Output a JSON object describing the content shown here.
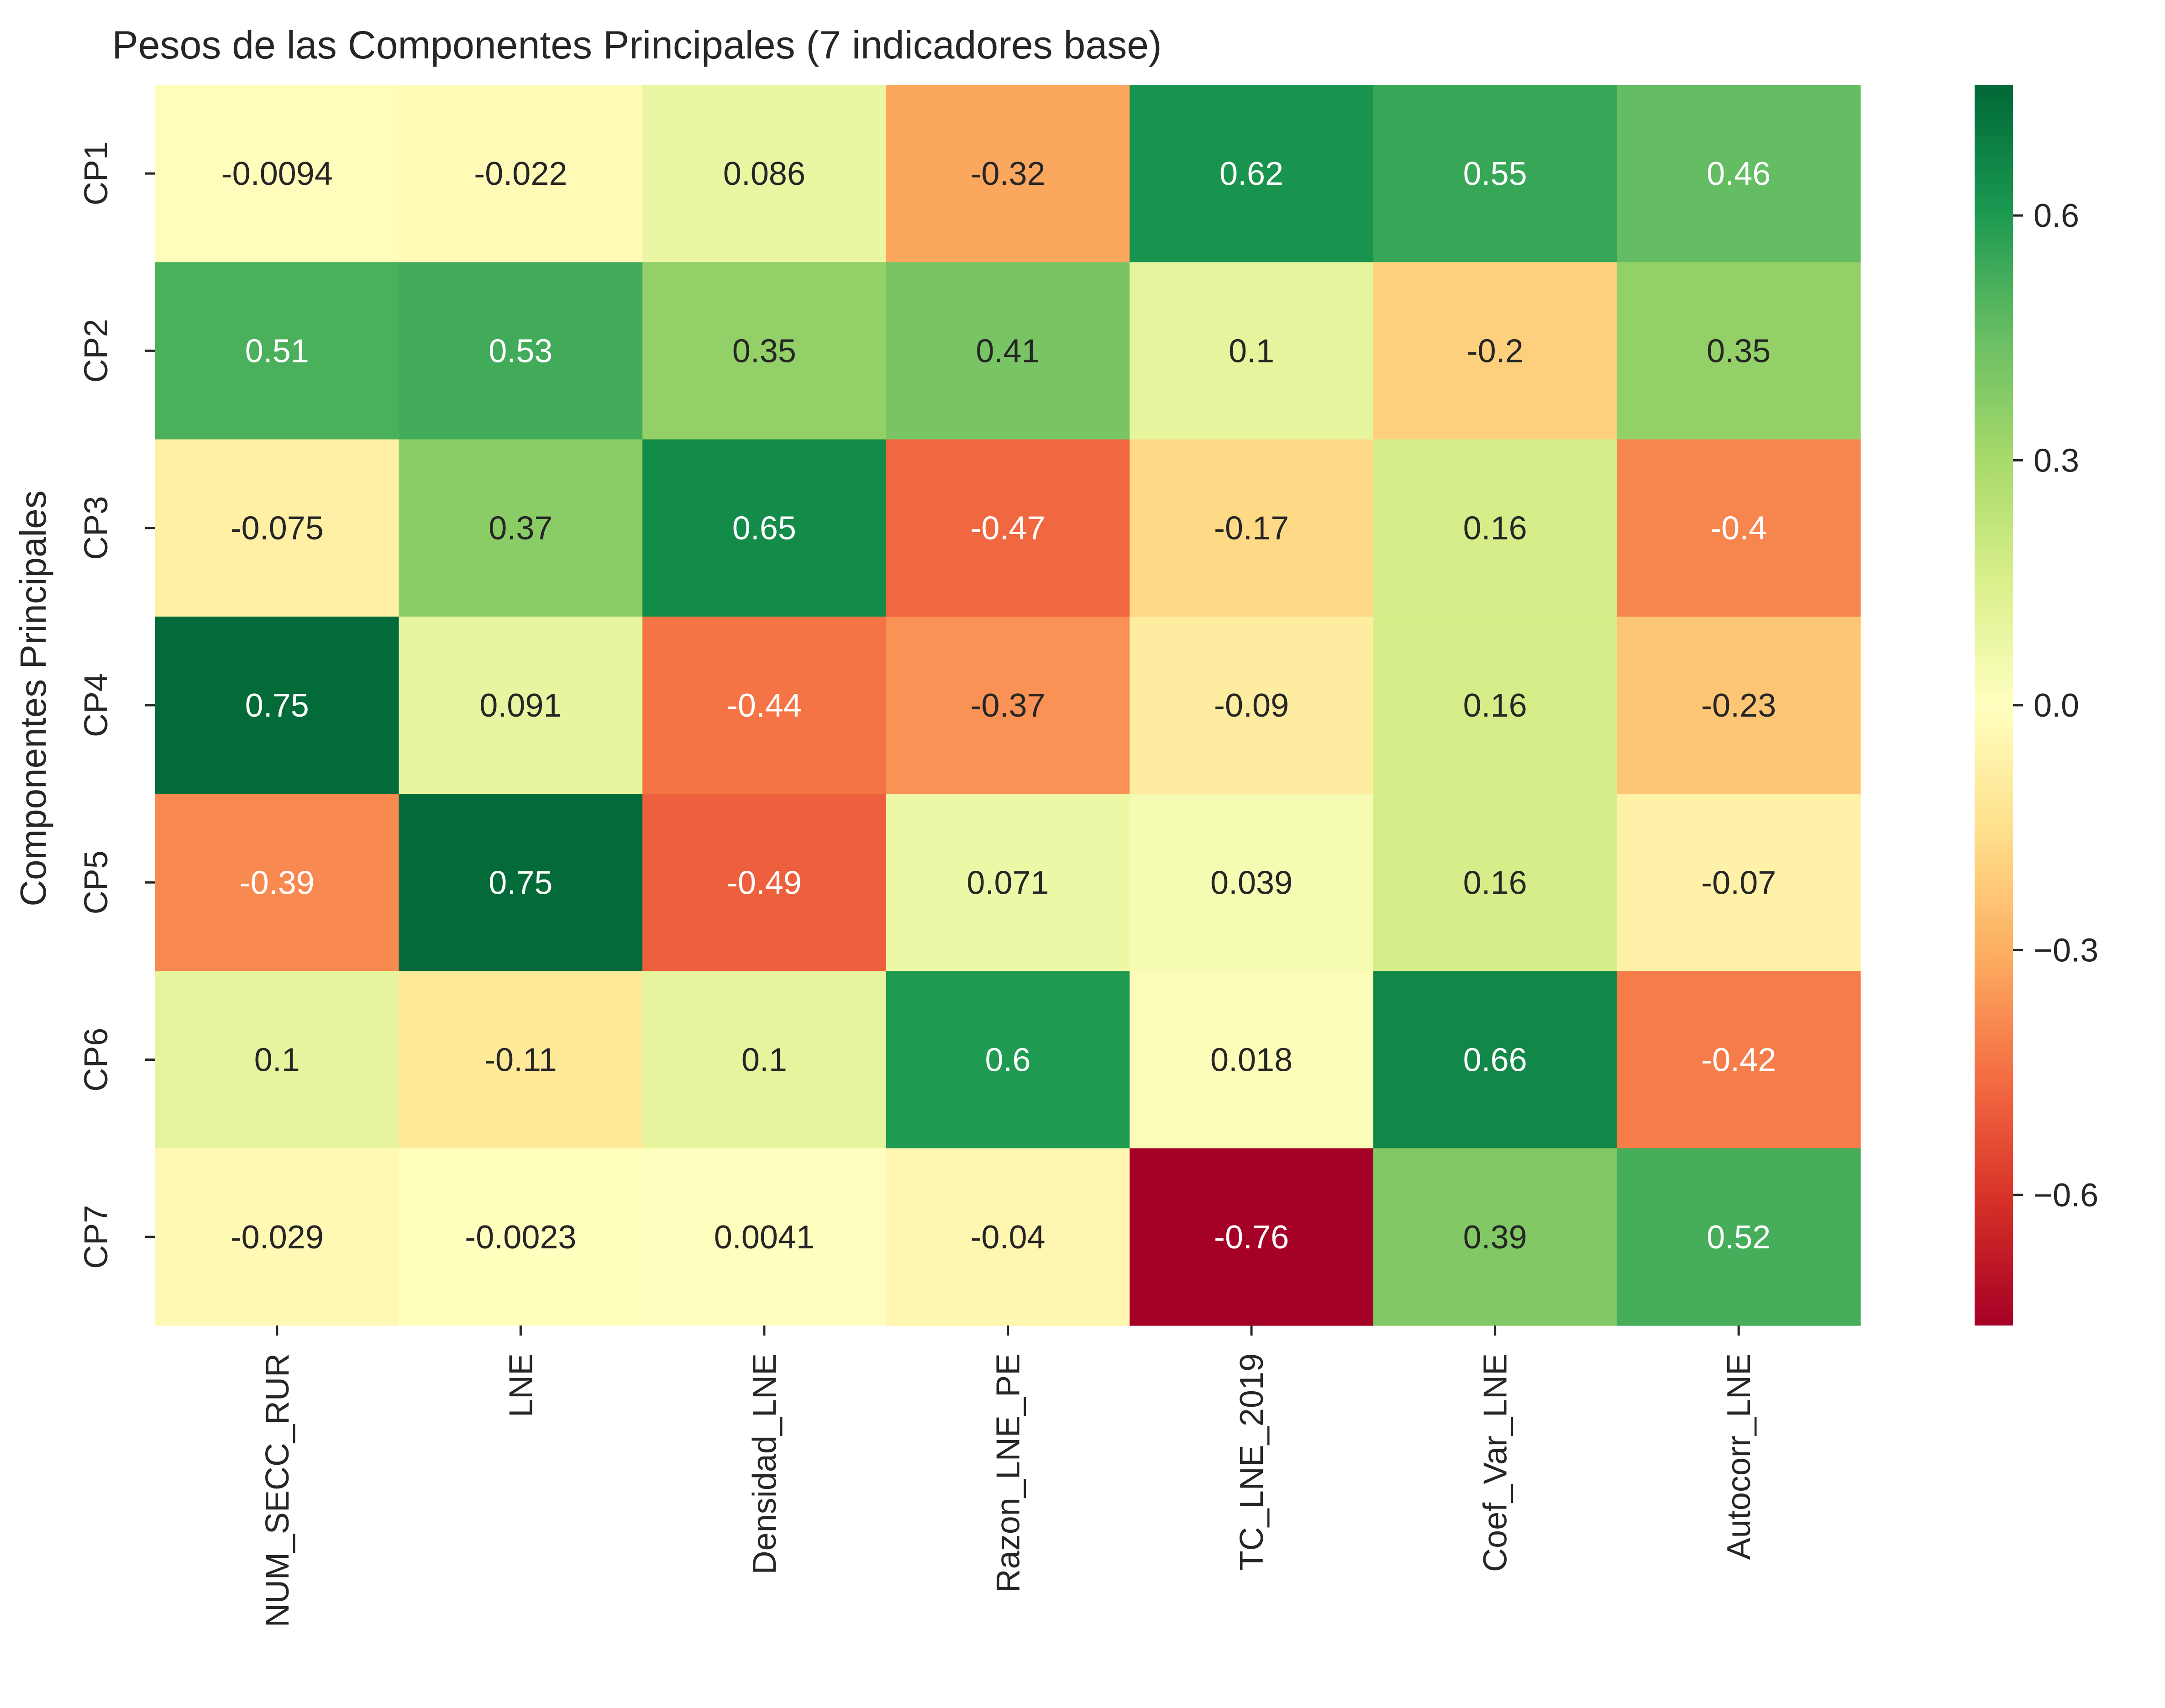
{
  "chart_data": {
    "type": "heatmap",
    "title": "Pesos de las Componentes Principales (7 indicadores base)",
    "xlabel": "",
    "ylabel": "Componentes Principales",
    "x_categories": [
      "NUM_SECC_RUR",
      "LNE",
      "Densidad_LNE",
      "Razon_LNE_PE",
      "TC_LNE_2019",
      "Coef_Var_LNE",
      "Autocorr_LNE"
    ],
    "y_categories": [
      "CP1",
      "CP2",
      "CP3",
      "CP4",
      "CP5",
      "CP6",
      "CP7"
    ],
    "values": [
      [
        -0.0094,
        -0.022,
        0.086,
        -0.32,
        0.62,
        0.55,
        0.46
      ],
      [
        0.51,
        0.53,
        0.35,
        0.41,
        0.1,
        -0.2,
        0.35
      ],
      [
        -0.075,
        0.37,
        0.65,
        -0.47,
        -0.17,
        0.16,
        -0.4
      ],
      [
        0.75,
        0.091,
        -0.44,
        -0.37,
        -0.09,
        0.16,
        -0.23
      ],
      [
        -0.39,
        0.75,
        -0.49,
        0.071,
        0.039,
        0.16,
        -0.07
      ],
      [
        0.1,
        -0.11,
        0.1,
        0.6,
        0.018,
        0.66,
        -0.42
      ],
      [
        -0.029,
        -0.0023,
        0.0041,
        -0.04,
        -0.76,
        0.39,
        0.52
      ]
    ],
    "labels": [
      [
        "-0.0094",
        "-0.022",
        "0.086",
        "-0.32",
        "0.62",
        "0.55",
        "0.46"
      ],
      [
        "0.51",
        "0.53",
        "0.35",
        "0.41",
        "0.1",
        "-0.2",
        "0.35"
      ],
      [
        "-0.075",
        "0.37",
        "0.65",
        "-0.47",
        "-0.17",
        "0.16",
        "-0.4"
      ],
      [
        "0.75",
        "0.091",
        "-0.44",
        "-0.37",
        "-0.09",
        "0.16",
        "-0.23"
      ],
      [
        "-0.39",
        "0.75",
        "-0.49",
        "0.071",
        "0.039",
        "0.16",
        "-0.07"
      ],
      [
        "0.1",
        "-0.11",
        "0.1",
        "0.6",
        "0.018",
        "0.66",
        "-0.42"
      ],
      [
        "-0.029",
        "-0.0023",
        "0.0041",
        "-0.04",
        "-0.76",
        "0.39",
        "0.52"
      ]
    ],
    "colormap": "RdYlGn",
    "vmin": -0.76,
    "vmax": 0.76,
    "colorbar_ticks": [
      0.6,
      0.3,
      0.0,
      -0.3,
      -0.6
    ],
    "colorbar_tick_labels": [
      "0.6",
      "0.3",
      "0.0",
      "−0.3",
      "−0.6"
    ],
    "grid": false,
    "legend": "colorbar-right"
  }
}
